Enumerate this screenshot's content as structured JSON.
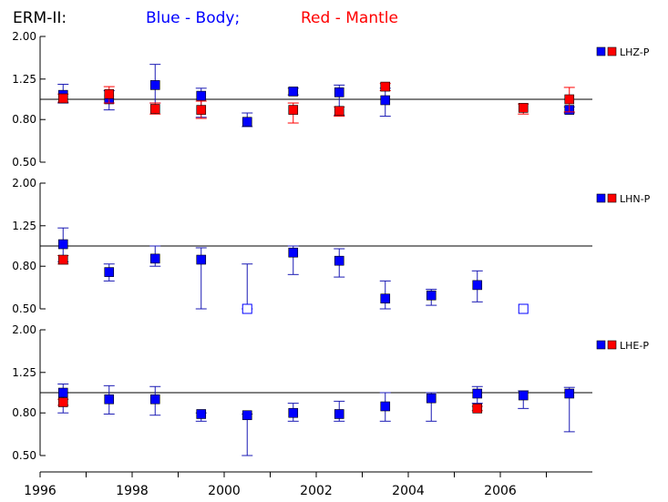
{
  "header": {
    "prefix": "ERM-II:",
    "blue_text": "Blue - Body;",
    "red_text": "Red - Mantle"
  },
  "colors": {
    "body": "#0000ff",
    "mantle": "#ff0000",
    "errorbar": "#1a1ab4",
    "axis": "#000000"
  },
  "chart_data": [
    {
      "type": "scatter",
      "title": "",
      "legend": "LHZ-P",
      "legend_position": "right",
      "ylim": [
        0.5,
        2.0
      ],
      "y_scale": "log",
      "yticks": [
        "2.00",
        "1.25",
        "0.80",
        "0.50"
      ],
      "reference_line": 1.0,
      "series": [
        {
          "name": "Body",
          "color": "blue",
          "points": [
            {
              "x": 1996.5,
              "y": 1.05,
              "lo": 0.96,
              "hi": 1.18
            },
            {
              "x": 1997.5,
              "y": 1.0,
              "lo": 0.89,
              "hi": 1.1
            },
            {
              "x": 1998.5,
              "y": 1.17,
              "lo": 0.96,
              "hi": 1.47
            },
            {
              "x": 1999.5,
              "y": 1.04,
              "lo": 0.82,
              "hi": 1.13
            },
            {
              "x": 2000.5,
              "y": 0.78,
              "lo": 0.74,
              "hi": 0.86
            },
            {
              "x": 2001.5,
              "y": 1.09,
              "lo": 1.05,
              "hi": 1.13
            },
            {
              "x": 2002.5,
              "y": 1.08,
              "lo": 0.84,
              "hi": 1.17
            },
            {
              "x": 2003.5,
              "y": 0.99,
              "lo": 0.83,
              "hi": 1.13
            },
            {
              "x": 2007.5,
              "y": 0.89,
              "lo": 0.86,
              "hi": 0.92
            }
          ]
        },
        {
          "name": "Mantle",
          "color": "red",
          "points": [
            {
              "x": 1996.5,
              "y": 1.01,
              "lo": 0.97,
              "hi": 1.06
            },
            {
              "x": 1997.5,
              "y": 1.06,
              "lo": 0.96,
              "hi": 1.15
            },
            {
              "x": 1998.5,
              "y": 0.9,
              "lo": 0.85,
              "hi": 0.96
            },
            {
              "x": 1999.5,
              "y": 0.89,
              "lo": 0.81,
              "hi": 0.98
            },
            {
              "x": 2001.5,
              "y": 0.89,
              "lo": 0.77,
              "hi": 0.96
            },
            {
              "x": 2002.5,
              "y": 0.88,
              "lo": 0.83,
              "hi": 0.92
            },
            {
              "x": 2003.5,
              "y": 1.15,
              "lo": 1.1,
              "hi": 1.19
            },
            {
              "x": 2006.5,
              "y": 0.91,
              "lo": 0.85,
              "hi": 0.95
            },
            {
              "x": 2007.5,
              "y": 1.0,
              "lo": 0.87,
              "hi": 1.14
            }
          ]
        }
      ]
    },
    {
      "type": "scatter",
      "title": "",
      "legend": "LHN-P",
      "legend_position": "right",
      "ylim": [
        0.5,
        2.0
      ],
      "y_scale": "log",
      "yticks": [
        "2.00",
        "1.25",
        "0.80",
        "0.50"
      ],
      "reference_line": 1.0,
      "series": [
        {
          "name": "Body",
          "color": "blue",
          "points": [
            {
              "x": 1996.5,
              "y": 1.02,
              "lo": 0.84,
              "hi": 1.22
            },
            {
              "x": 1997.5,
              "y": 0.75,
              "lo": 0.68,
              "hi": 0.82
            },
            {
              "x": 1998.5,
              "y": 0.87,
              "lo": 0.8,
              "hi": 1.0
            },
            {
              "x": 1999.5,
              "y": 0.86,
              "lo": 0.5,
              "hi": 0.98
            },
            {
              "x": 2000.5,
              "y": 0.5,
              "lo": 0.5,
              "hi": 0.82,
              "open": true
            },
            {
              "x": 2001.5,
              "y": 0.93,
              "lo": 0.73,
              "hi": 1.0
            },
            {
              "x": 2002.5,
              "y": 0.85,
              "lo": 0.71,
              "hi": 0.97
            },
            {
              "x": 2003.5,
              "y": 0.56,
              "lo": 0.5,
              "hi": 0.68
            },
            {
              "x": 2004.5,
              "y": 0.58,
              "lo": 0.52,
              "hi": 0.62
            },
            {
              "x": 2005.5,
              "y": 0.65,
              "lo": 0.54,
              "hi": 0.76
            },
            {
              "x": 2006.5,
              "y": 0.5,
              "open": true
            }
          ]
        },
        {
          "name": "Mantle",
          "color": "red",
          "points": [
            {
              "x": 1996.5,
              "y": 0.86,
              "lo": 0.82,
              "hi": 0.9
            }
          ]
        }
      ]
    },
    {
      "type": "scatter",
      "title": "",
      "legend": "LHE-P",
      "legend_position": "right",
      "ylim": [
        0.5,
        2.0
      ],
      "y_scale": "log",
      "yticks": [
        "2.00",
        "1.25",
        "0.80",
        "0.50"
      ],
      "reference_line": 1.0,
      "xlim": [
        1996,
        2008
      ],
      "xticks": [
        "1996",
        "1998",
        "2000",
        "2002",
        "2004",
        "2006"
      ],
      "series": [
        {
          "name": "Body",
          "color": "blue",
          "points": [
            {
              "x": 1996.5,
              "y": 1.0,
              "lo": 0.8,
              "hi": 1.1
            },
            {
              "x": 1997.5,
              "y": 0.93,
              "lo": 0.79,
              "hi": 1.08
            },
            {
              "x": 1998.5,
              "y": 0.93,
              "lo": 0.78,
              "hi": 1.07
            },
            {
              "x": 1999.5,
              "y": 0.79,
              "lo": 0.73,
              "hi": 0.8
            },
            {
              "x": 2000.5,
              "y": 0.78,
              "lo": 0.5,
              "hi": 0.79
            },
            {
              "x": 2001.5,
              "y": 0.8,
              "lo": 0.73,
              "hi": 0.89
            },
            {
              "x": 2002.5,
              "y": 0.79,
              "lo": 0.73,
              "hi": 0.91
            },
            {
              "x": 2003.5,
              "y": 0.86,
              "lo": 0.73,
              "hi": 1.0
            },
            {
              "x": 2004.5,
              "y": 0.94,
              "lo": 0.73,
              "hi": 1.0
            },
            {
              "x": 2005.5,
              "y": 0.99,
              "lo": 0.89,
              "hi": 1.07
            },
            {
              "x": 2006.5,
              "y": 0.97,
              "lo": 0.84,
              "hi": 1.02
            },
            {
              "x": 2007.5,
              "y": 0.99,
              "lo": 0.65,
              "hi": 1.06
            }
          ]
        },
        {
          "name": "Mantle",
          "color": "red",
          "points": [
            {
              "x": 1996.5,
              "y": 0.9,
              "lo": 0.87,
              "hi": 0.93
            },
            {
              "x": 2005.5,
              "y": 0.84,
              "lo": 0.82,
              "hi": 0.86
            }
          ]
        }
      ]
    }
  ]
}
